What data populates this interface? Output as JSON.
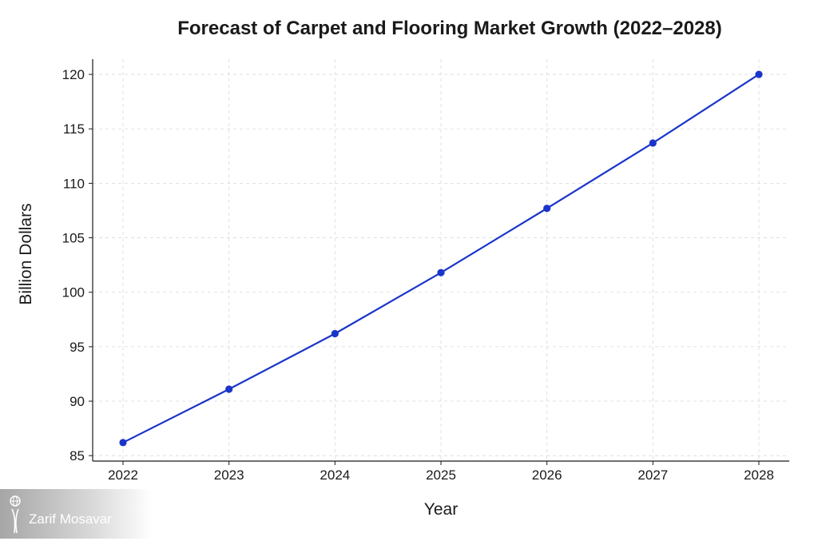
{
  "chart_data": {
    "type": "line",
    "title": "Forecast of Carpet and Flooring Market Growth (2022–2028)",
    "xlabel": "Year",
    "ylabel": "Billion Dollars",
    "x": [
      2022,
      2023,
      2024,
      2025,
      2026,
      2027,
      2028
    ],
    "x_tick_labels": [
      "2022",
      "2023",
      "2024",
      "2025",
      "2026",
      "2027",
      "2028"
    ],
    "series": [
      {
        "values": [
          86.2,
          91.1,
          96.2,
          101.8,
          107.7,
          113.7,
          120.0
        ],
        "color": "#1a35c9"
      }
    ],
    "y_ticks": [
      85,
      90,
      95,
      100,
      105,
      110,
      115,
      120
    ],
    "ylim": [
      84.5,
      121.4
    ],
    "grid": true,
    "grid_style": "dashed",
    "legend": "none"
  },
  "watermark": {
    "text": "Zarif Mosavar",
    "icon": "person-globe-logo-icon"
  }
}
